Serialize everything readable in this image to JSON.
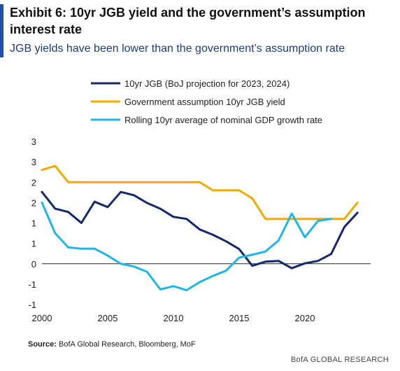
{
  "header": {
    "title": "Exhibit 6: 10yr JGB yield and the government’s assumption interest rate",
    "subtitle": "JGB yields have been lower than the government’s assumption rate"
  },
  "footer": {
    "source_label": "Source:",
    "source_text": "BofA Global Research, Bloomberg, MoF",
    "brand": "BofA GLOBAL RESEARCH"
  },
  "chart_data": {
    "type": "line",
    "title": "",
    "xlabel": "",
    "ylabel": "",
    "xlim": [
      2000,
      2025
    ],
    "ylim": [
      -1,
      3
    ],
    "x_ticks": [
      "2000",
      "2005",
      "2010",
      "2015",
      "2020"
    ],
    "y_ticks": [
      {
        "value": 3,
        "label": "3"
      },
      {
        "value": 2.5,
        "label": "3"
      },
      {
        "value": 2,
        "label": "2"
      },
      {
        "value": 1.5,
        "label": "2"
      },
      {
        "value": 1,
        "label": "1"
      },
      {
        "value": 0.5,
        "label": "1"
      },
      {
        "value": 0,
        "label": "0"
      },
      {
        "value": -0.5,
        "label": "-1"
      },
      {
        "value": -1,
        "label": "-1"
      }
    ],
    "grid": false,
    "legend_position": "top",
    "series": [
      {
        "name": "10yr JGB (BoJ projection for 2023, 2024)",
        "color": "#14286e",
        "x": [
          2000,
          2001,
          2002,
          2003,
          2004,
          2005,
          2006,
          2007,
          2008,
          2009,
          2010,
          2011,
          2012,
          2013,
          2014,
          2015,
          2016,
          2017,
          2018,
          2019,
          2020,
          2021,
          2022,
          2023,
          2024
        ],
        "y": [
          1.76,
          1.35,
          1.27,
          1.0,
          1.52,
          1.39,
          1.76,
          1.68,
          1.49,
          1.35,
          1.15,
          1.1,
          0.84,
          0.71,
          0.55,
          0.36,
          -0.05,
          0.05,
          0.07,
          -0.11,
          0.01,
          0.07,
          0.24,
          0.9,
          1.25
        ]
      },
      {
        "name": "Government assumption 10yr JGB yield",
        "color": "#f2a900",
        "x": [
          2000,
          2001,
          2002,
          2003,
          2004,
          2005,
          2006,
          2007,
          2008,
          2009,
          2010,
          2011,
          2012,
          2013,
          2014,
          2015,
          2016,
          2017,
          2018,
          2019,
          2020,
          2021,
          2022,
          2023,
          2024
        ],
        "y": [
          2.3,
          2.4,
          2.0,
          2.0,
          2.0,
          2.0,
          2.0,
          2.0,
          2.0,
          2.0,
          2.0,
          2.0,
          2.0,
          1.8,
          1.8,
          1.8,
          1.6,
          1.1,
          1.1,
          1.1,
          1.1,
          1.1,
          1.1,
          1.1,
          1.5
        ]
      },
      {
        "name": "Rolling 10yr average of nominal GDP growth rate",
        "color": "#1fb5e8",
        "x": [
          2000,
          2001,
          2002,
          2003,
          2004,
          2005,
          2006,
          2007,
          2008,
          2009,
          2010,
          2011,
          2012,
          2013,
          2014,
          2015,
          2016,
          2017,
          2018,
          2019,
          2020,
          2021,
          2022
        ],
        "y": [
          1.5,
          0.75,
          0.4,
          0.37,
          0.37,
          0.2,
          0.0,
          -0.07,
          -0.2,
          -0.63,
          -0.55,
          -0.65,
          -0.45,
          -0.3,
          -0.17,
          0.15,
          0.22,
          0.3,
          0.57,
          1.23,
          0.65,
          1.05,
          1.1
        ]
      }
    ]
  }
}
